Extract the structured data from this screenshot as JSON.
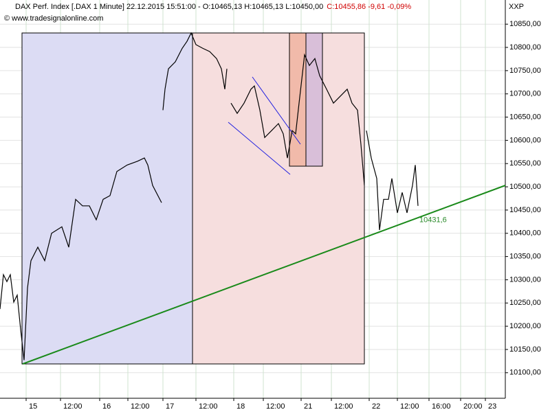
{
  "chart_data": {
    "type": "line",
    "title": "DAX Perf. Index [.DAX  1 Minute] 22.12.2015 15:51:00 - O:10465,13 H:10465,13 L:10450,00",
    "quote": "C:10455,86 -9,61 -0,09%",
    "subtitle": "© www.tradesignalonline.com",
    "symbol": "XXP",
    "xlim": [
      0,
      735
    ],
    "ylim": [
      10045,
      10902
    ],
    "grid": true,
    "xticks": [
      {
        "value": 38,
        "label": "15"
      },
      {
        "value": 88,
        "label": "12:00"
      },
      {
        "value": 145,
        "label": "16"
      },
      {
        "value": 186,
        "label": "12:00"
      },
      {
        "value": 237,
        "label": "17"
      },
      {
        "value": 285,
        "label": "12:00"
      },
      {
        "value": 340,
        "label": "18"
      },
      {
        "value": 383,
        "label": "12:00"
      },
      {
        "value": 438,
        "label": "21"
      },
      {
        "value": 482,
        "label": "12:00"
      },
      {
        "value": 537,
        "label": "22"
      },
      {
        "value": 578,
        "label": "12:00"
      },
      {
        "value": 624,
        "label": "16:00"
      },
      {
        "value": 670,
        "label": "20:00"
      },
      {
        "value": 706,
        "label": "23"
      }
    ],
    "yticks": [
      {
        "value": 10100,
        "label": "10100,00"
      },
      {
        "value": 10150,
        "label": "10150,00"
      },
      {
        "value": 10200,
        "label": "10200,00"
      },
      {
        "value": 10250,
        "label": "10250,00"
      },
      {
        "value": 10300,
        "label": "10300,00"
      },
      {
        "value": 10350,
        "label": "10350,00"
      },
      {
        "value": 10400,
        "label": "10400,00"
      },
      {
        "value": 10450,
        "label": "10450,00"
      },
      {
        "value": 10500,
        "label": "10500,00"
      },
      {
        "value": 10550,
        "label": "10550,00"
      },
      {
        "value": 10600,
        "label": "10600,00"
      },
      {
        "value": 10650,
        "label": "10650,00"
      },
      {
        "value": 10700,
        "label": "10700,00"
      },
      {
        "value": 10750,
        "label": "10750,00"
      },
      {
        "value": 10800,
        "label": "10800,00"
      },
      {
        "value": 10850,
        "label": "10850,00"
      }
    ],
    "series": [
      {
        "color": "#000000",
        "x": [
          0,
          5,
          10,
          15,
          20,
          25,
          30,
          35,
          40,
          45,
          55,
          65,
          75,
          90,
          100,
          110,
          120,
          130,
          140,
          150,
          160,
          170,
          185,
          200,
          210,
          215,
          222,
          235,
          236,
          237,
          240,
          245,
          255,
          265,
          272,
          278,
          285,
          295,
          305,
          315,
          322,
          327,
          330,
          333,
          336,
          345,
          355,
          365,
          370,
          378,
          385,
          395,
          405,
          412,
          418,
          425,
          430,
          435,
          443,
          450,
          458,
          465,
          475,
          485,
          495,
          505,
          512,
          520,
          525,
          530,
          531,
          533,
          540,
          548,
          552,
          558,
          565,
          570,
          578,
          585,
          592,
          600,
          604,
          608
        ],
        "values": [
          10237,
          10311,
          10296,
          10311,
          10252,
          10267,
          10193,
          10127,
          10282,
          10341,
          10370,
          10341,
          10400,
          10414,
          10370,
          10473,
          10459,
          10459,
          10429,
          10473,
          10481,
          10533,
          10547,
          10555,
          10562,
          10547,
          10503,
          10466,
          null,
          10665,
          10710,
          10754,
          10769,
          10798,
          10813,
          10831,
          10806,
          10798,
          10791,
          10776,
          10754,
          10710,
          10754,
          null,
          10680,
          10658,
          10680,
          10710,
          10717,
          10665,
          10606,
          10621,
          10636,
          10614,
          10562,
          10621,
          10614,
          10680,
          10784,
          10761,
          10776,
          10739,
          10710,
          10680,
          10695,
          10710,
          10680,
          10665,
          10591,
          10503,
          null,
          10621,
          10562,
          10518,
          10407,
          10473,
          10473,
          10518,
          10444,
          10488,
          10444,
          10503,
          10547,
          10459
        ]
      }
    ],
    "annotations": [
      {
        "x": 610,
        "y": 10431.6,
        "label": "10431,6",
        "color": "#2a8a2a"
      }
    ]
  }
}
